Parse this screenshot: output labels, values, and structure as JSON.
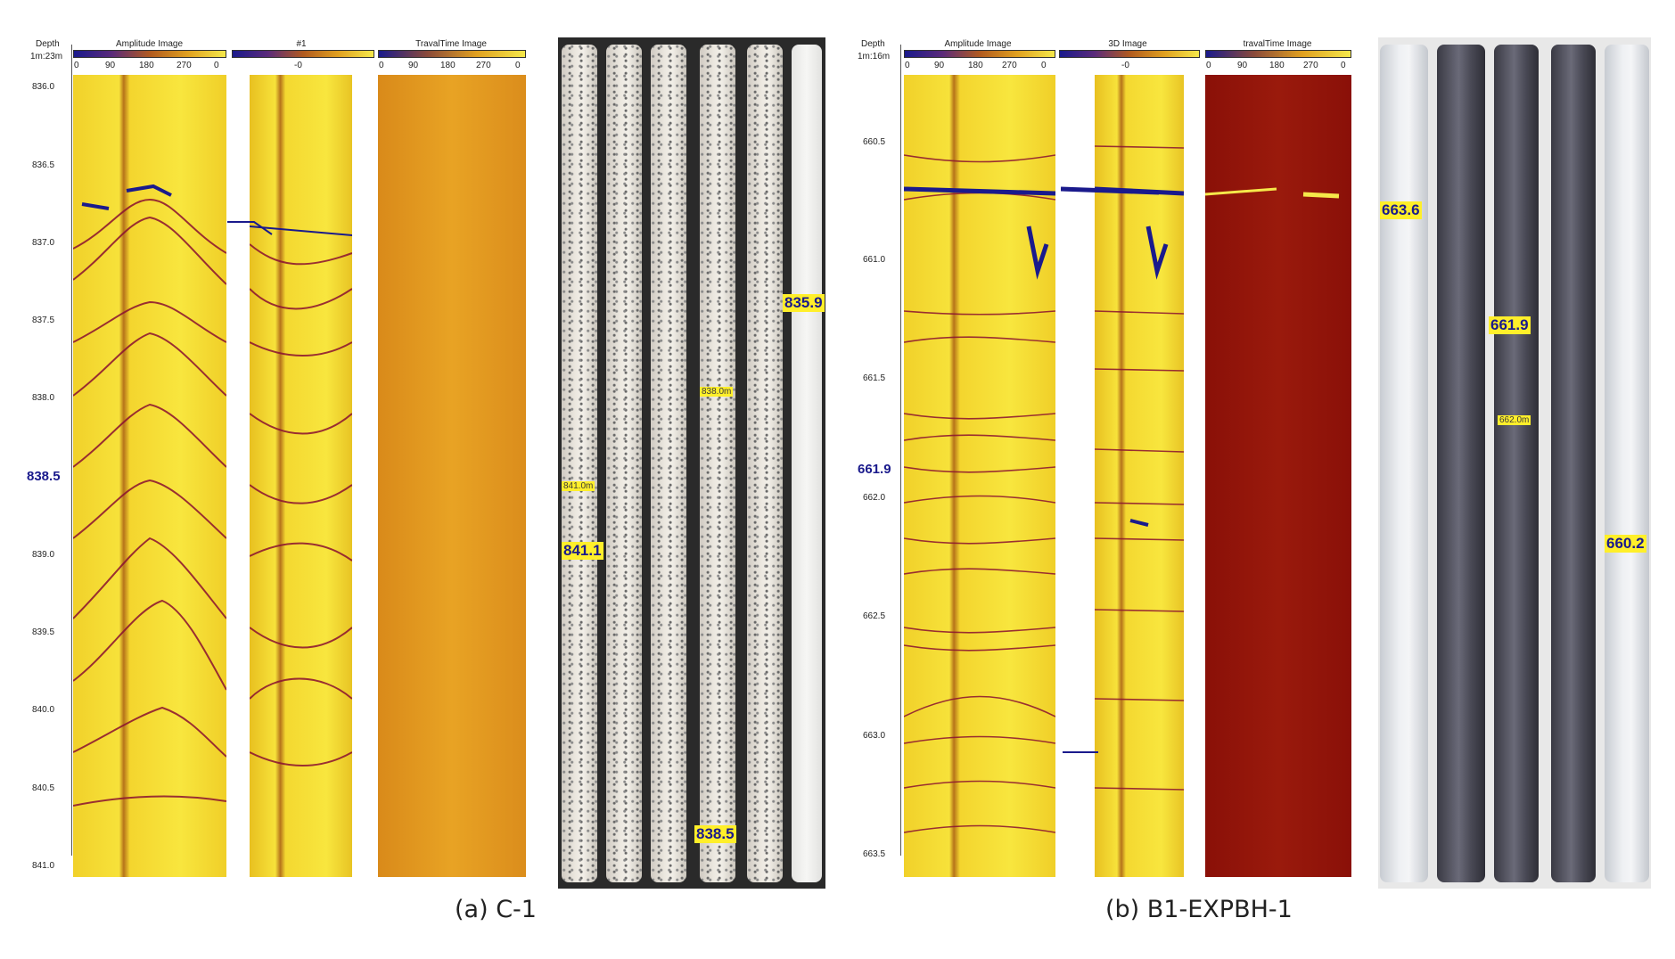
{
  "panel_a": {
    "depth_header": "Depth",
    "scale": "1m:23m",
    "tracks": [
      {
        "title": "Amplitude Image",
        "ticks": [
          "0",
          "90",
          "180",
          "270",
          "0"
        ]
      },
      {
        "title": "#1",
        "ticks": [
          "-0"
        ]
      },
      {
        "title": "TravalTime Image",
        "ticks": [
          "0",
          "90",
          "180",
          "270",
          "0"
        ]
      }
    ],
    "depths": [
      "836.0",
      "836.5",
      "837.0",
      "837.5",
      "838.0",
      "838.5",
      "839.0",
      "839.5",
      "840.0",
      "840.5",
      "841.0"
    ],
    "highlight_depth": "838.5",
    "core_labels": [
      "841.1",
      "835.9",
      "838.5"
    ],
    "core_small_labels": [
      "841.0m",
      "838.0m"
    ],
    "caption": "(a) C-1"
  },
  "panel_b": {
    "depth_header": "Depth",
    "scale": "1m:16m",
    "tracks": [
      {
        "title": "Amplitude Image",
        "ticks": [
          "0",
          "90",
          "180",
          "270",
          "0"
        ]
      },
      {
        "title": "3D Image",
        "ticks": [
          "-0"
        ]
      },
      {
        "title": "travalTime Image",
        "ticks": [
          "0",
          "90",
          "180",
          "270",
          "0"
        ]
      }
    ],
    "depths": [
      "660.5",
      "661.0",
      "661.5",
      "662.0",
      "662.5",
      "663.0",
      "663.5"
    ],
    "highlight_depth": "661.9",
    "core_labels": [
      "663.6",
      "661.9",
      "660.2"
    ],
    "core_small_labels": [
      "662.0m"
    ],
    "caption": "(b) B1-EXPBH-1"
  },
  "colors": {
    "tag_bg": "#ffef2a",
    "tag_text": "#1a1a8c",
    "trace": "#8a1030",
    "fracture": "#1a1a8c"
  }
}
